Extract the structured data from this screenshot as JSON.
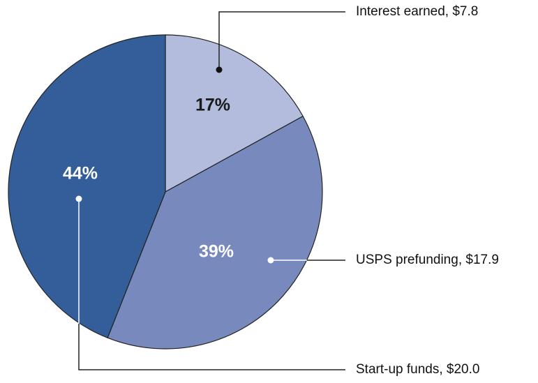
{
  "chart_data": {
    "type": "pie",
    "categories": [
      "Interest earned, $7.8",
      "USPS prefunding, $17.9",
      "Start-up funds, $20.0"
    ],
    "values": [
      17,
      39,
      44
    ],
    "value_labels": [
      "17%",
      "39%",
      "44%"
    ],
    "colors": [
      "#b3bcdc",
      "#7889bd",
      "#335e9a"
    ]
  }
}
